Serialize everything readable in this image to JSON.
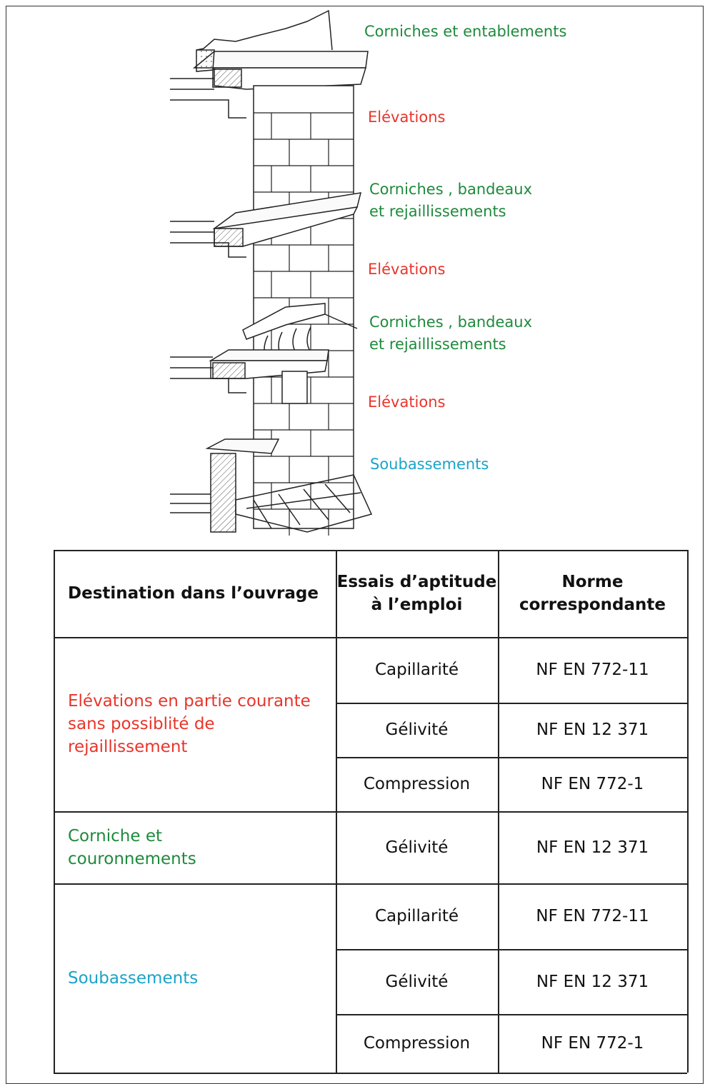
{
  "diagram": {
    "labels": [
      {
        "lines": [
          "Corniches et entablements"
        ],
        "color": "#1e8a3c"
      },
      {
        "lines": [
          "Elévations"
        ],
        "color": "#e8352b"
      },
      {
        "lines": [
          "Corniches , bandeaux",
          "et rejaillissements"
        ],
        "color": "#1e8a3c"
      },
      {
        "lines": [
          "Elévations"
        ],
        "color": "#e8352b"
      },
      {
        "lines": [
          "Corniches , bandeaux",
          "et rejaillissements"
        ],
        "color": "#1e8a3c"
      },
      {
        "lines": [
          "Elévations"
        ],
        "color": "#e8352b"
      },
      {
        "lines": [
          "Soubassements"
        ],
        "color": "#1aa3c8"
      }
    ]
  },
  "table": {
    "header": [
      [
        "Destination dans l’ouvrage"
      ],
      [
        "Essais d’aptitude",
        "à l’emploi"
      ],
      [
        "Norme",
        "correspondante"
      ]
    ],
    "groups": [
      {
        "destination": [
          "Elévations en partie courante",
          "sans possiblité de",
          "rejaillissement"
        ],
        "color": "#e8352b",
        "tests": [
          {
            "test": "Capillarité",
            "norme": "NF EN 772-11"
          },
          {
            "test": "Gélivité",
            "norme": "NF EN 12 371"
          },
          {
            "test": "Compression",
            "norme": "NF EN 772-1"
          }
        ]
      },
      {
        "destination": [
          "Corniche et",
          "couronnements"
        ],
        "color": "#1e8a3c",
        "tests": [
          {
            "test": "Gélivité",
            "norme": "NF EN 12 371"
          }
        ]
      },
      {
        "destination": [
          "Soubassements"
        ],
        "color": "#1aa3c8",
        "tests": [
          {
            "test": "Capillarité",
            "norme": "NF EN 772-11"
          },
          {
            "test": "Gélivité",
            "norme": "NF EN 12 371"
          },
          {
            "test": "Compression",
            "norme": "NF EN 772-1"
          }
        ]
      }
    ]
  }
}
